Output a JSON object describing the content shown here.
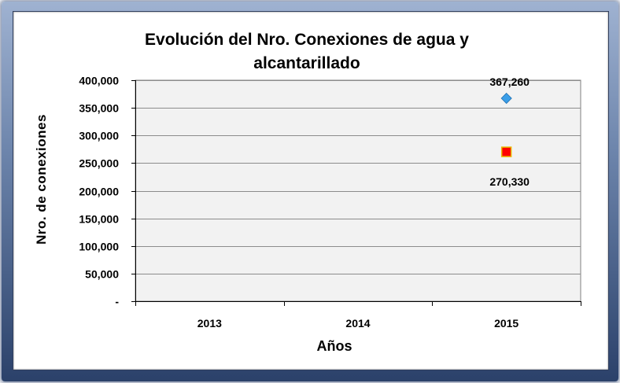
{
  "chart_data": {
    "type": "scatter",
    "title": "Evolución del Nro. Conexiones de agua y alcantarillado",
    "title_lines": [
      "Evolución del Nro. Conexiones de agua y",
      "alcantarillado"
    ],
    "xlabel": "Años",
    "ylabel": "Nro. de conexiones",
    "categories": [
      "2013",
      "2014",
      "2015"
    ],
    "ylim": [
      0,
      400000
    ],
    "y_ticks": [
      0,
      50000,
      100000,
      150000,
      200000,
      250000,
      300000,
      350000,
      400000
    ],
    "y_tick_labels": [
      "-",
      "50,000",
      "100,000",
      "150,000",
      "200,000",
      "250,000",
      "300,000",
      "350,000",
      "400,000"
    ],
    "grid": true,
    "series": [
      {
        "marker": "diamond",
        "color": "#3a9ee8",
        "values": [
          null,
          null,
          367260
        ],
        "labels": [
          null,
          null,
          "367,260"
        ],
        "label_position": "above"
      },
      {
        "marker": "square",
        "color": "#ff0000",
        "edge_color": "#e8b800",
        "values": [
          null,
          null,
          270330
        ],
        "labels": [
          null,
          null,
          "270,330"
        ],
        "label_position": "below"
      }
    ]
  }
}
